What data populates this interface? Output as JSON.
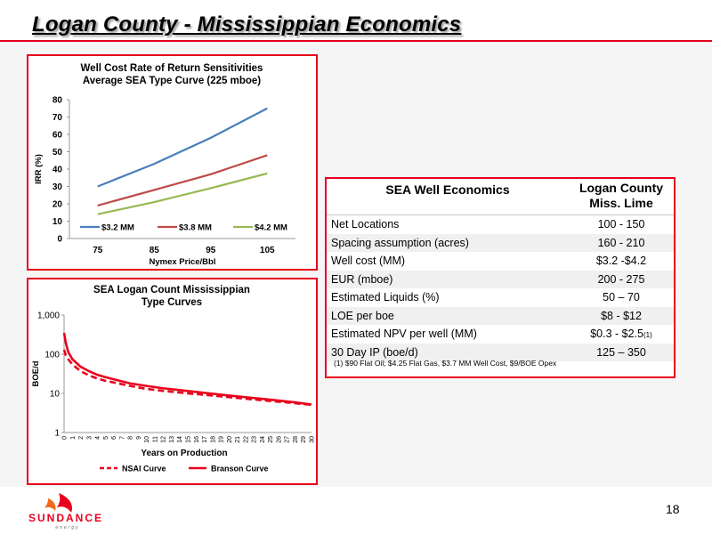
{
  "slide": {
    "title": "Logan County - Mississippian Economics",
    "page_number": "18",
    "logo_text": "SUNDANCE",
    "logo_subtext": "energy"
  },
  "colors": {
    "accent": "#e8001c",
    "series_blue": "#4a7ebb",
    "series_red": "#be4b48",
    "series_green": "#98b954",
    "type_curve": "#e8001c"
  },
  "chart_data": [
    {
      "type": "line",
      "title": "Well Cost Rate of Return Sensitivities",
      "subtitle": "Average SEA Type Curve (225 mboe)",
      "xlabel": "Nymex Price/Bbl",
      "ylabel": "IRR (%)",
      "categories": [
        "75",
        "85",
        "95",
        "105"
      ],
      "ylim": [
        0,
        80
      ],
      "yticks": [
        "0",
        "10",
        "20",
        "30",
        "40",
        "50",
        "60",
        "70",
        "80"
      ],
      "grid": false,
      "legend": "bottom-inside",
      "series": [
        {
          "name": "$3.2 MM",
          "values": [
            30,
            43,
            58,
            75
          ],
          "color": "#4a7ebb"
        },
        {
          "name": "$3.8 MM",
          "values": [
            19,
            28,
            37,
            48
          ],
          "color": "#be4b48"
        },
        {
          "name": "$4.2 MM",
          "values": [
            14,
            21,
            29,
            37.5
          ],
          "color": "#98b954"
        }
      ]
    },
    {
      "type": "line",
      "title": "SEA Logan Count  Mississippian",
      "subtitle": "Type Curves",
      "xlabel": "Years on Production",
      "ylabel": "BOE/d",
      "log_y": true,
      "ylim": [
        1,
        1000
      ],
      "yticks": [
        "1",
        "10",
        "100",
        "1,000"
      ],
      "xlim": [
        0,
        30
      ],
      "xticks": [
        "0",
        "1",
        "2",
        "3",
        "4",
        "5",
        "6",
        "7",
        "8",
        "9",
        "10",
        "11",
        "12",
        "13",
        "14",
        "15",
        "16",
        "17",
        "18",
        "19",
        "20",
        "21",
        "22",
        "23",
        "24",
        "25",
        "26",
        "27",
        "28",
        "29",
        "30"
      ],
      "legend": "bottom",
      "series": [
        {
          "name": "NSAI Curve",
          "style": "dashed",
          "color": "#e8001c",
          "x": [
            0,
            0.2,
            0.5,
            1,
            2,
            3,
            4,
            5,
            6,
            8,
            10,
            12,
            15,
            18,
            20,
            22,
            25,
            28,
            30
          ],
          "y": [
            130,
            95,
            75,
            55,
            37,
            29,
            24,
            21,
            19,
            15.5,
            13,
            11.6,
            10,
            8.8,
            8,
            7.3,
            6.4,
            5.6,
            5.1
          ]
        },
        {
          "name": "Branson Curve",
          "style": "solid",
          "color": "#e8001c",
          "x": [
            0,
            0.2,
            0.5,
            1,
            2,
            3,
            4,
            5,
            6,
            8,
            10,
            12,
            15,
            18,
            20,
            22,
            25,
            28,
            30
          ],
          "y": [
            350,
            200,
            115,
            75,
            48,
            37,
            30,
            26,
            23,
            18,
            15.5,
            13.5,
            11.5,
            9.8,
            8.8,
            8,
            6.9,
            5.9,
            5.2
          ]
        }
      ]
    }
  ],
  "table": {
    "header_left": "SEA Well Economics",
    "header_right_line1": "Logan County",
    "header_right_line2": "Miss. Lime",
    "rows": [
      {
        "label": "Net Locations",
        "value": "100 - 150"
      },
      {
        "label": "Spacing assumption (acres)",
        "value": "160 - 210"
      },
      {
        "label": "Well cost (MM)",
        "value": "$3.2 -$4.2"
      },
      {
        "label": "EUR (mboe)",
        "value": "200 - 275"
      },
      {
        "label": "Estimated Liquids (%)",
        "value": "50 – 70"
      },
      {
        "label": "LOE per boe",
        "value": "$8 - $12"
      },
      {
        "label": "Estimated NPV per well (MM)",
        "value": "$0.3 - $2.5",
        "note": "(1)"
      },
      {
        "label": "30 Day IP (boe/d)",
        "value": "125 – 350"
      }
    ],
    "footnote": "(1) $90 Flat Oil; $4.25 Flat Gas, $3.7 MM Well Cost, $9/BOE Opex"
  }
}
